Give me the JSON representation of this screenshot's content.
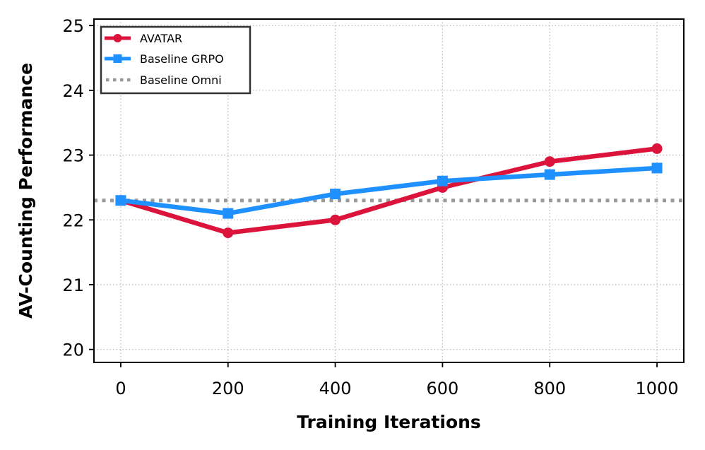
{
  "chart_data": {
    "type": "line",
    "title": "",
    "xlabel": "Training Iterations",
    "ylabel": "AV-Counting Performance",
    "x": [
      0,
      200,
      400,
      600,
      800,
      1000
    ],
    "xlim": [
      -50,
      1050
    ],
    "ylim": [
      19.8,
      25.1
    ],
    "xticks": [
      0,
      200,
      400,
      600,
      800,
      1000
    ],
    "xtick_labels": [
      "0",
      "200",
      "400",
      "600",
      "800",
      "1000"
    ],
    "yticks": [
      20,
      21,
      22,
      23,
      24,
      25
    ],
    "ytick_labels": [
      "20",
      "21",
      "22",
      "23",
      "24",
      "25"
    ],
    "grid": true,
    "legend_position": "top-left",
    "series": [
      {
        "name": "AVATAR",
        "values": [
          22.3,
          21.8,
          22.0,
          22.5,
          22.9,
          23.1
        ],
        "color": "#DC143C",
        "marker": "circle",
        "style": "solid"
      },
      {
        "name": "Baseline GRPO",
        "values": [
          22.3,
          22.1,
          22.4,
          22.6,
          22.7,
          22.8
        ],
        "color": "#1E90FF",
        "marker": "square",
        "style": "solid"
      }
    ],
    "reference_lines": [
      {
        "name": "Baseline Omni",
        "value": 22.3,
        "color": "#999999",
        "style": "dotted"
      }
    ]
  }
}
